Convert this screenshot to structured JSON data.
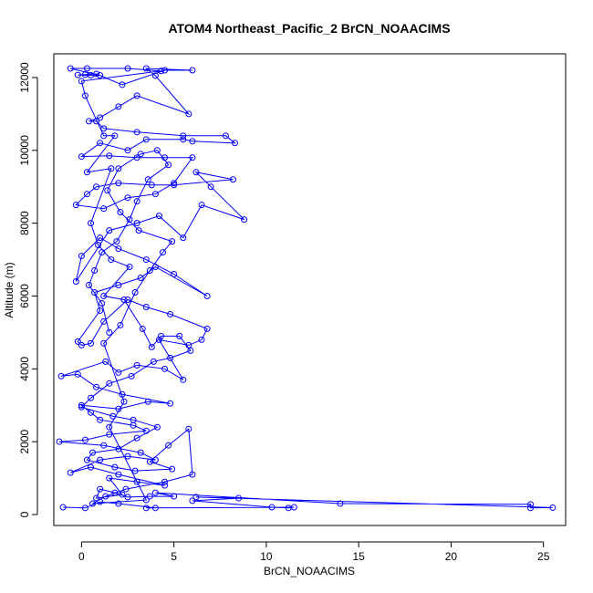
{
  "chart_data": {
    "type": "scatter",
    "title": "ATOM4 Northeast_Pacific_2 BrCN_NOAACIMS",
    "xlabel": "BrCN_NOAACIMS",
    "ylabel": "Altitude (m)",
    "xlim": [
      -1.5,
      26.2
    ],
    "ylim": [
      -300,
      12650
    ],
    "xticks": [
      0,
      5,
      10,
      15,
      20,
      25
    ],
    "yticks": [
      0,
      2000,
      4000,
      6000,
      8000,
      10000,
      12000
    ],
    "grid": false,
    "colors": {
      "series": "#0000ff",
      "axis": "#000000"
    },
    "series": [
      {
        "values_xy": [
          [
            -1.0,
            200
          ],
          [
            0.2,
            180
          ],
          [
            1.0,
            350
          ],
          [
            2.0,
            300
          ],
          [
            4.0,
            180
          ],
          [
            3.5,
            180
          ],
          [
            11.5,
            200
          ],
          [
            11.2,
            180
          ],
          [
            10.3,
            200
          ],
          [
            6.0,
            380
          ],
          [
            8.5,
            450
          ],
          [
            6.2,
            480
          ],
          [
            25.5,
            190
          ],
          [
            24.3,
            180
          ],
          [
            24.3,
            280
          ],
          [
            14.0,
            300
          ],
          [
            4.0,
            600
          ],
          [
            5.0,
            500
          ],
          [
            3.7,
            500
          ],
          [
            2.5,
            480
          ],
          [
            1.8,
            600
          ],
          [
            1.0,
            700
          ],
          [
            0.8,
            450
          ],
          [
            2.2,
            550
          ],
          [
            1.5,
            1000
          ],
          [
            3.0,
            900
          ],
          [
            4.5,
            800
          ],
          [
            2.0,
            1100
          ],
          [
            0.5,
            1300
          ],
          [
            -0.6,
            1150
          ],
          [
            1.0,
            1500
          ],
          [
            2.5,
            1600
          ],
          [
            4.0,
            1500
          ],
          [
            3.2,
            1700
          ],
          [
            1.2,
            1900
          ],
          [
            -1.2,
            2000
          ],
          [
            0.2,
            2050
          ],
          [
            1.5,
            2200
          ],
          [
            3.5,
            2300
          ],
          [
            2.8,
            2450
          ],
          [
            1.0,
            2600
          ],
          [
            0.5,
            2800
          ],
          [
            0.0,
            3000
          ],
          [
            2.0,
            2900
          ],
          [
            3.6,
            3100
          ],
          [
            4.8,
            3050
          ],
          [
            2.2,
            3300
          ],
          [
            0.8,
            3500
          ],
          [
            -0.2,
            3850
          ],
          [
            -1.1,
            3800
          ],
          [
            1.3,
            4200
          ],
          [
            2.0,
            3900
          ],
          [
            3.0,
            4100
          ],
          [
            4.5,
            4000
          ],
          [
            5.5,
            3700
          ],
          [
            4.2,
            4800
          ],
          [
            5.8,
            4650
          ],
          [
            6.5,
            4800
          ],
          [
            6.8,
            5100
          ],
          [
            4.8,
            5500
          ],
          [
            3.5,
            5700
          ],
          [
            2.5,
            5900
          ],
          [
            1.2,
            5300
          ],
          [
            0.5,
            4700
          ],
          [
            0.0,
            4650
          ],
          [
            -0.2,
            4750
          ],
          [
            1.0,
            5600
          ],
          [
            0.7,
            6100
          ],
          [
            2.0,
            6300
          ],
          [
            3.2,
            6500
          ],
          [
            4.0,
            6800
          ],
          [
            6.8,
            6000
          ],
          [
            5.0,
            6600
          ],
          [
            3.5,
            7000
          ],
          [
            2.0,
            7300
          ],
          [
            1.0,
            7600
          ],
          [
            0.0,
            7100
          ],
          [
            -0.3,
            6400
          ],
          [
            1.5,
            7800
          ],
          [
            3.0,
            8000
          ],
          [
            4.2,
            8200
          ],
          [
            5.5,
            7600
          ],
          [
            6.5,
            8500
          ],
          [
            8.8,
            8100
          ],
          [
            7.0,
            9000
          ],
          [
            6.2,
            9400
          ],
          [
            8.2,
            9200
          ],
          [
            5.0,
            9050
          ],
          [
            3.8,
            9050
          ],
          [
            2.0,
            9100
          ],
          [
            0.8,
            9000
          ],
          [
            0.3,
            8800
          ],
          [
            -0.3,
            8500
          ],
          [
            1.2,
            8400
          ],
          [
            2.5,
            8700
          ],
          [
            4.0,
            8800
          ],
          [
            5.0,
            9100
          ],
          [
            6.0,
            9800
          ],
          [
            4.5,
            9800
          ],
          [
            3.0,
            9800
          ],
          [
            1.5,
            9850
          ],
          [
            0.0,
            9830
          ],
          [
            1.0,
            10200
          ],
          [
            2.5,
            10000
          ],
          [
            3.5,
            10300
          ],
          [
            5.5,
            10300
          ],
          [
            6.0,
            10250
          ],
          [
            8.3,
            10200
          ],
          [
            7.8,
            10400
          ],
          [
            5.5,
            10400
          ],
          [
            3.0,
            10500
          ],
          [
            1.2,
            10600
          ],
          [
            0.8,
            10800
          ],
          [
            0.4,
            10800
          ],
          [
            1.0,
            10900
          ],
          [
            2.0,
            11200
          ],
          [
            3.0,
            11500
          ],
          [
            5.8,
            11000
          ],
          [
            4.0,
            12050
          ],
          [
            3.5,
            12250
          ],
          [
            6.0,
            12200
          ],
          [
            4.5,
            12200
          ],
          [
            2.2,
            11800
          ],
          [
            0.8,
            12100
          ],
          [
            0.2,
            12080
          ],
          [
            -0.2,
            12070
          ],
          [
            0.5,
            12060
          ],
          [
            1.0,
            12060
          ],
          [
            -0.6,
            12250
          ],
          [
            0.3,
            12250
          ],
          [
            2.5,
            12250
          ],
          [
            4.3,
            12180
          ],
          [
            0.0,
            11900
          ],
          [
            0.2,
            11500
          ],
          [
            1.2,
            10400
          ],
          [
            1.8,
            10400
          ],
          [
            0.3,
            9400
          ],
          [
            1.6,
            9500
          ],
          [
            0.5,
            8000
          ],
          [
            0.9,
            7400
          ],
          [
            1.6,
            7000
          ],
          [
            2.6,
            6800
          ],
          [
            1.2,
            6000
          ],
          [
            2.3,
            5900
          ],
          [
            3.3,
            5100
          ],
          [
            3.8,
            4600
          ],
          [
            4.3,
            4900
          ],
          [
            5.3,
            4900
          ],
          [
            5.9,
            4500
          ],
          [
            4.8,
            4300
          ],
          [
            3.9,
            4200
          ],
          [
            2.7,
            3800
          ],
          [
            1.5,
            3600
          ],
          [
            0.5,
            3200
          ],
          [
            0.0,
            2950
          ],
          [
            1.7,
            2700
          ],
          [
            2.8,
            2600
          ],
          [
            4.1,
            2400
          ],
          [
            3.0,
            2100
          ],
          [
            2.0,
            1800
          ],
          [
            0.6,
            1700
          ],
          [
            0.3,
            1500
          ],
          [
            1.8,
            1300
          ],
          [
            2.9,
            1200
          ],
          [
            4.9,
            1250
          ],
          [
            3.7,
            1450
          ],
          [
            4.7,
            1900
          ],
          [
            5.8,
            2350
          ],
          [
            6.0,
            1100
          ],
          [
            4.5,
            900
          ],
          [
            2.4,
            700
          ],
          [
            1.3,
            500
          ],
          [
            0.6,
            300
          ],
          [
            3.5,
            400
          ],
          [
            1.5,
            2400
          ],
          [
            2.3,
            3100
          ],
          [
            1.2,
            4700
          ],
          [
            2.1,
            5200
          ],
          [
            2.9,
            6100
          ],
          [
            3.7,
            6700
          ],
          [
            4.4,
            7200
          ],
          [
            4.9,
            7500
          ],
          [
            3.1,
            7800
          ],
          [
            2.1,
            8300
          ],
          [
            1.4,
            8900
          ],
          [
            2.0,
            9500
          ],
          [
            3.2,
            9900
          ],
          [
            4.1,
            10000
          ],
          [
            4.7,
            9600
          ],
          [
            3.6,
            9200
          ],
          [
            3.0,
            8600
          ],
          [
            2.6,
            8100
          ],
          [
            1.9,
            7500
          ],
          [
            1.1,
            7200
          ],
          [
            0.7,
            6700
          ],
          [
            0.4,
            6300
          ],
          [
            1.1,
            5800
          ],
          [
            1.5,
            5000
          ]
        ]
      }
    ]
  }
}
